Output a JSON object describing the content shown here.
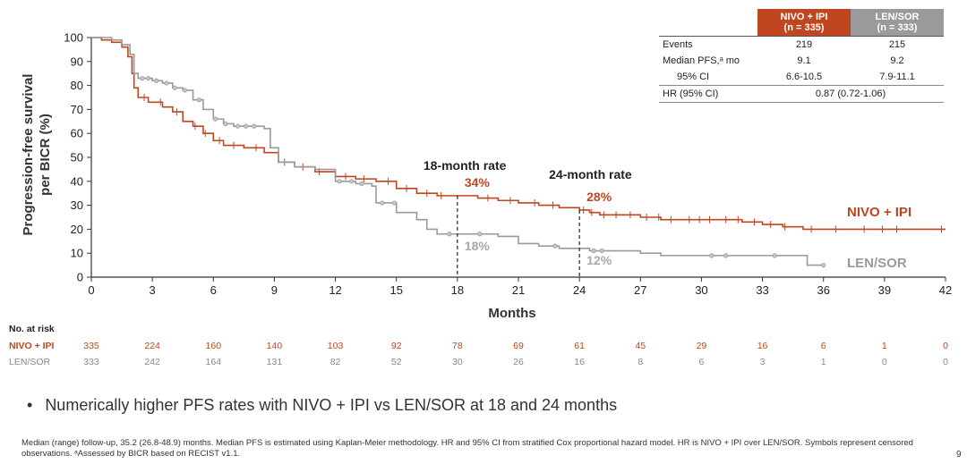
{
  "chart_data": {
    "type": "line",
    "title": "",
    "xlabel": "Months",
    "ylabel_line1": "Progression-free survival",
    "ylabel_line2": "per BICR (%)",
    "xlim": [
      0,
      42
    ],
    "ylim": [
      0,
      100
    ],
    "x_ticks": [
      0,
      3,
      6,
      9,
      12,
      15,
      18,
      21,
      24,
      27,
      30,
      33,
      36,
      39,
      42
    ],
    "y_ticks": [
      0,
      10,
      20,
      30,
      40,
      50,
      60,
      70,
      80,
      90,
      100
    ],
    "series": [
      {
        "name": "NIVO + IPI",
        "color": "#c0461f",
        "points": [
          [
            0,
            100
          ],
          [
            0.5,
            99
          ],
          [
            1,
            98
          ],
          [
            1.5,
            96
          ],
          [
            1.8,
            92
          ],
          [
            2.0,
            85
          ],
          [
            2.1,
            79
          ],
          [
            2.3,
            75
          ],
          [
            2.8,
            73
          ],
          [
            3.5,
            71
          ],
          [
            4.0,
            69
          ],
          [
            4.5,
            65
          ],
          [
            5.0,
            63
          ],
          [
            5.5,
            60
          ],
          [
            6.0,
            57
          ],
          [
            6.5,
            55
          ],
          [
            7.5,
            54
          ],
          [
            8.5,
            52
          ],
          [
            9.2,
            48
          ],
          [
            10,
            46
          ],
          [
            11,
            44
          ],
          [
            12,
            42
          ],
          [
            13,
            41
          ],
          [
            14,
            40
          ],
          [
            15,
            37
          ],
          [
            16,
            35
          ],
          [
            17,
            34
          ],
          [
            18,
            34
          ],
          [
            19,
            33
          ],
          [
            20,
            32
          ],
          [
            21,
            31
          ],
          [
            22,
            30
          ],
          [
            23,
            29
          ],
          [
            24,
            28
          ],
          [
            24.5,
            27
          ],
          [
            25,
            26
          ],
          [
            27,
            25
          ],
          [
            28,
            24
          ],
          [
            30,
            24
          ],
          [
            32,
            23
          ],
          [
            33,
            22
          ],
          [
            34,
            21
          ],
          [
            35,
            20
          ],
          [
            42,
            20
          ]
        ],
        "censored": [
          2.6,
          3.4,
          4.2,
          5.1,
          5.6,
          6.3,
          7,
          8.1,
          9.5,
          10.4,
          11.2,
          12.5,
          13.4,
          14.6,
          15.5,
          16.5,
          17.2,
          19.5,
          20.6,
          21.8,
          22.7,
          24.2,
          24.6,
          25.2,
          25.8,
          26.5,
          27.3,
          27.9,
          28.5,
          29.4,
          29.9,
          30.4,
          31.2,
          31.8,
          32.6,
          33.4,
          34.1,
          35.4,
          36.6,
          38,
          38.9,
          39.6,
          41.8
        ]
      },
      {
        "name": "LEN/SOR",
        "color": "#9a9a9a",
        "points": [
          [
            0,
            100
          ],
          [
            0.5,
            100
          ],
          [
            1,
            99
          ],
          [
            1.5,
            97
          ],
          [
            1.9,
            93
          ],
          [
            2.1,
            85
          ],
          [
            2.3,
            83
          ],
          [
            3,
            82
          ],
          [
            3.5,
            81
          ],
          [
            4,
            79
          ],
          [
            4.5,
            78
          ],
          [
            5,
            74
          ],
          [
            5.5,
            70
          ],
          [
            6,
            66
          ],
          [
            6.5,
            64
          ],
          [
            7,
            63
          ],
          [
            8,
            63
          ],
          [
            8.5,
            62
          ],
          [
            8.8,
            54
          ],
          [
            9.2,
            48
          ],
          [
            10,
            46
          ],
          [
            11,
            45
          ],
          [
            12,
            40
          ],
          [
            13,
            39
          ],
          [
            13.8,
            38
          ],
          [
            14,
            31
          ],
          [
            15,
            27
          ],
          [
            16,
            24
          ],
          [
            16.5,
            20
          ],
          [
            17,
            18
          ],
          [
            18,
            18
          ],
          [
            20,
            17
          ],
          [
            21,
            14
          ],
          [
            22,
            13
          ],
          [
            23,
            12
          ],
          [
            24,
            12
          ],
          [
            24.5,
            11
          ],
          [
            25,
            11
          ],
          [
            27,
            10
          ],
          [
            28,
            9
          ],
          [
            30,
            9
          ],
          [
            35,
            9
          ],
          [
            35.2,
            5
          ],
          [
            36,
            5
          ]
        ],
        "censored": [
          2.5,
          2.8,
          3.2,
          3.7,
          4.1,
          4.6,
          5.3,
          6.1,
          6.6,
          7.2,
          7.6,
          8.0,
          12.2,
          12.8,
          13.3,
          14.3,
          14.9,
          17.6,
          19.1,
          22.8,
          24.7,
          25.1,
          30.5,
          31.2,
          33.6,
          36
        ]
      }
    ],
    "annotations": [
      {
        "label": "18-month rate",
        "month": 18,
        "nivo_rate": 34,
        "len_rate": 18,
        "nivo_text": "34%",
        "len_text": "18%"
      },
      {
        "label": "24-month rate",
        "month": 24,
        "nivo_rate": 28,
        "len_rate": 12,
        "nivo_text": "28%",
        "len_text": "12%"
      }
    ],
    "legend": {
      "nivo_label": "NIVO + IPI",
      "len_label": "LEN/SOR",
      "placement": "right"
    }
  },
  "table": {
    "col1_line1": "NIVO + IPI",
    "col1_line2": "(n = 335)",
    "col2_line1": "LEN/SOR",
    "col2_line2": "(n = 333)",
    "rows": [
      {
        "label": "Events",
        "v1": "219",
        "v2": "215"
      },
      {
        "label": "Median PFS,ᵃ mo",
        "v1": "9.1",
        "v2": "9.2"
      },
      {
        "label": "95% CI",
        "v1": "6.6-10.5",
        "v2": "7.9-11.1"
      }
    ],
    "hr_label": "HR (95% CI)",
    "hr_value": "0.87 (0.72-1.06)"
  },
  "risk": {
    "title": "No. at risk",
    "nivo_label": "NIVO + IPI",
    "len_label": "LEN/SOR",
    "nivo": [
      "335",
      "224",
      "160",
      "140",
      "103",
      "92",
      "78",
      "69",
      "61",
      "45",
      "29",
      "16",
      "6",
      "1",
      "0"
    ],
    "len": [
      "333",
      "242",
      "164",
      "131",
      "82",
      "52",
      "30",
      "26",
      "16",
      "8",
      "6",
      "3",
      "1",
      "0",
      "0"
    ]
  },
  "bullet": "Numerically higher PFS rates with NIVO + IPI vs LEN/SOR at 18 and 24 months",
  "bullet_mark": "•",
  "footnote": "Median (range) follow-up, 35.2 (26.8-48.9) months. Median PFS is estimated using Kaplan-Meier methodology. HR and 95% CI from stratified Cox proportional hazard model. HR is NIVO + IPI over LEN/SOR. Symbols represent censored observations. ᵃAssessed by BICR based on RECIST v1.1.",
  "page_number": "9"
}
